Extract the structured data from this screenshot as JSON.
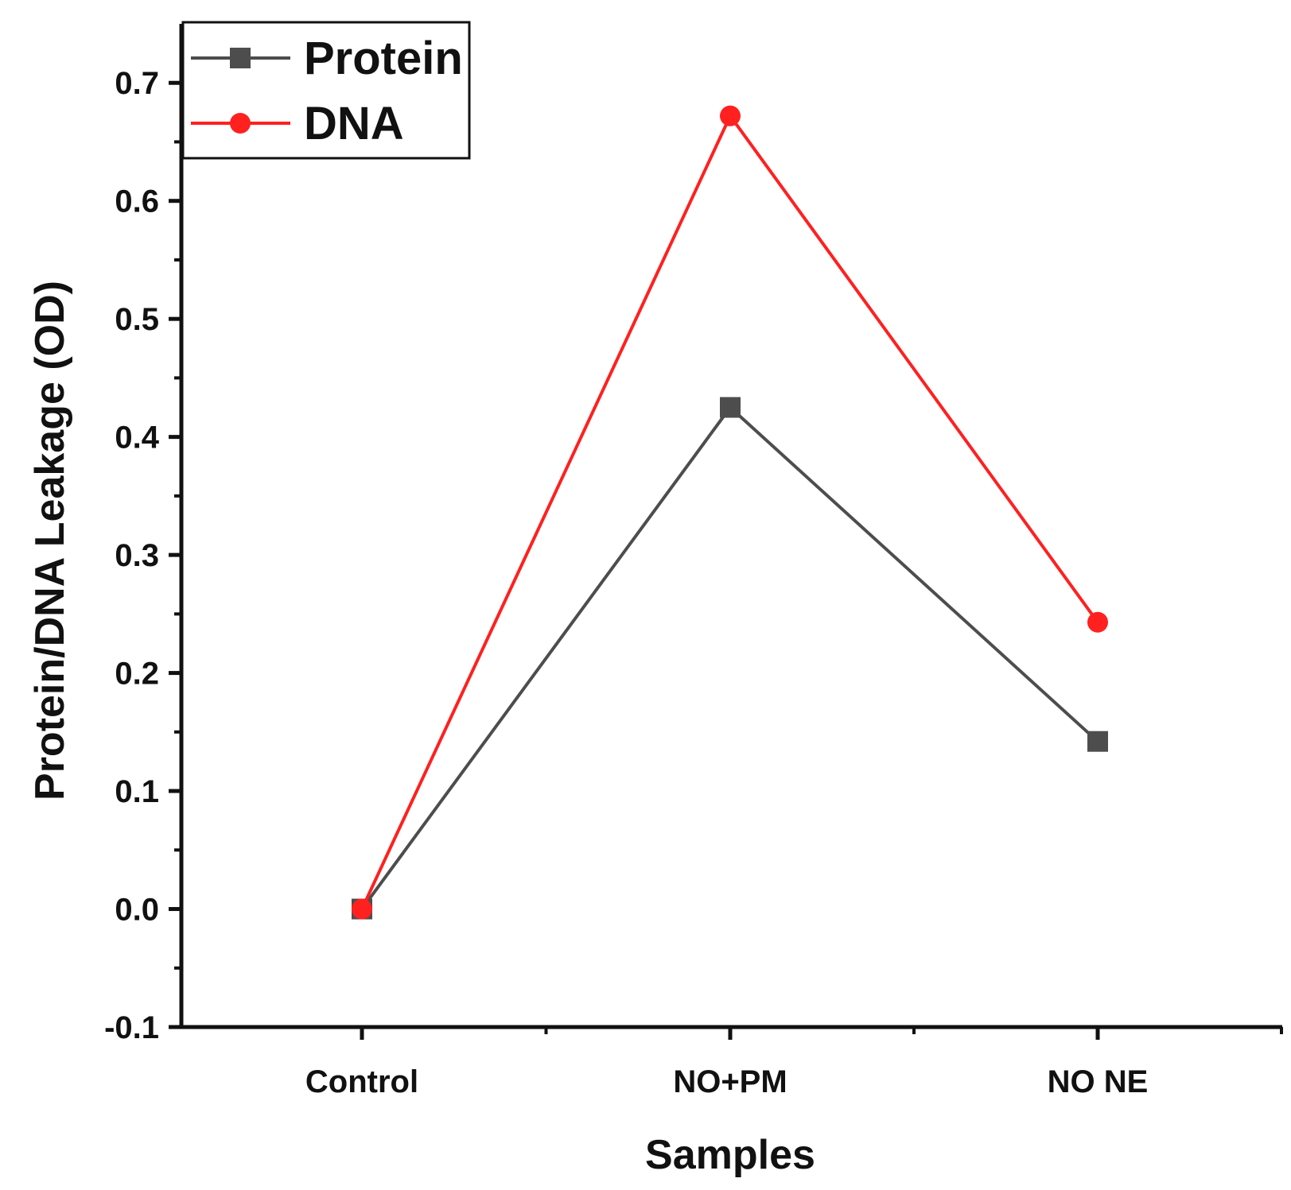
{
  "chart_data": {
    "type": "line",
    "categories": [
      "Control",
      "NO+PM",
      "NO NE"
    ],
    "series": [
      {
        "name": "Protein",
        "values": [
          0.0,
          0.425,
          0.142
        ],
        "color": "#4d4d4d",
        "marker": "square"
      },
      {
        "name": "DNA",
        "values": [
          0.0,
          0.672,
          0.243
        ],
        "color": "#ff2020",
        "marker": "circle"
      }
    ],
    "xlabel": "Samples",
    "ylabel": "Protein/DNA Leakage (OD)",
    "ylim": [
      -0.1,
      0.75
    ],
    "yticks": [
      "-0.1",
      "0.0",
      "0.1",
      "0.2",
      "0.3",
      "0.4",
      "0.5",
      "0.6",
      "0.7"
    ],
    "grid": false,
    "legend_position": "top-left"
  }
}
